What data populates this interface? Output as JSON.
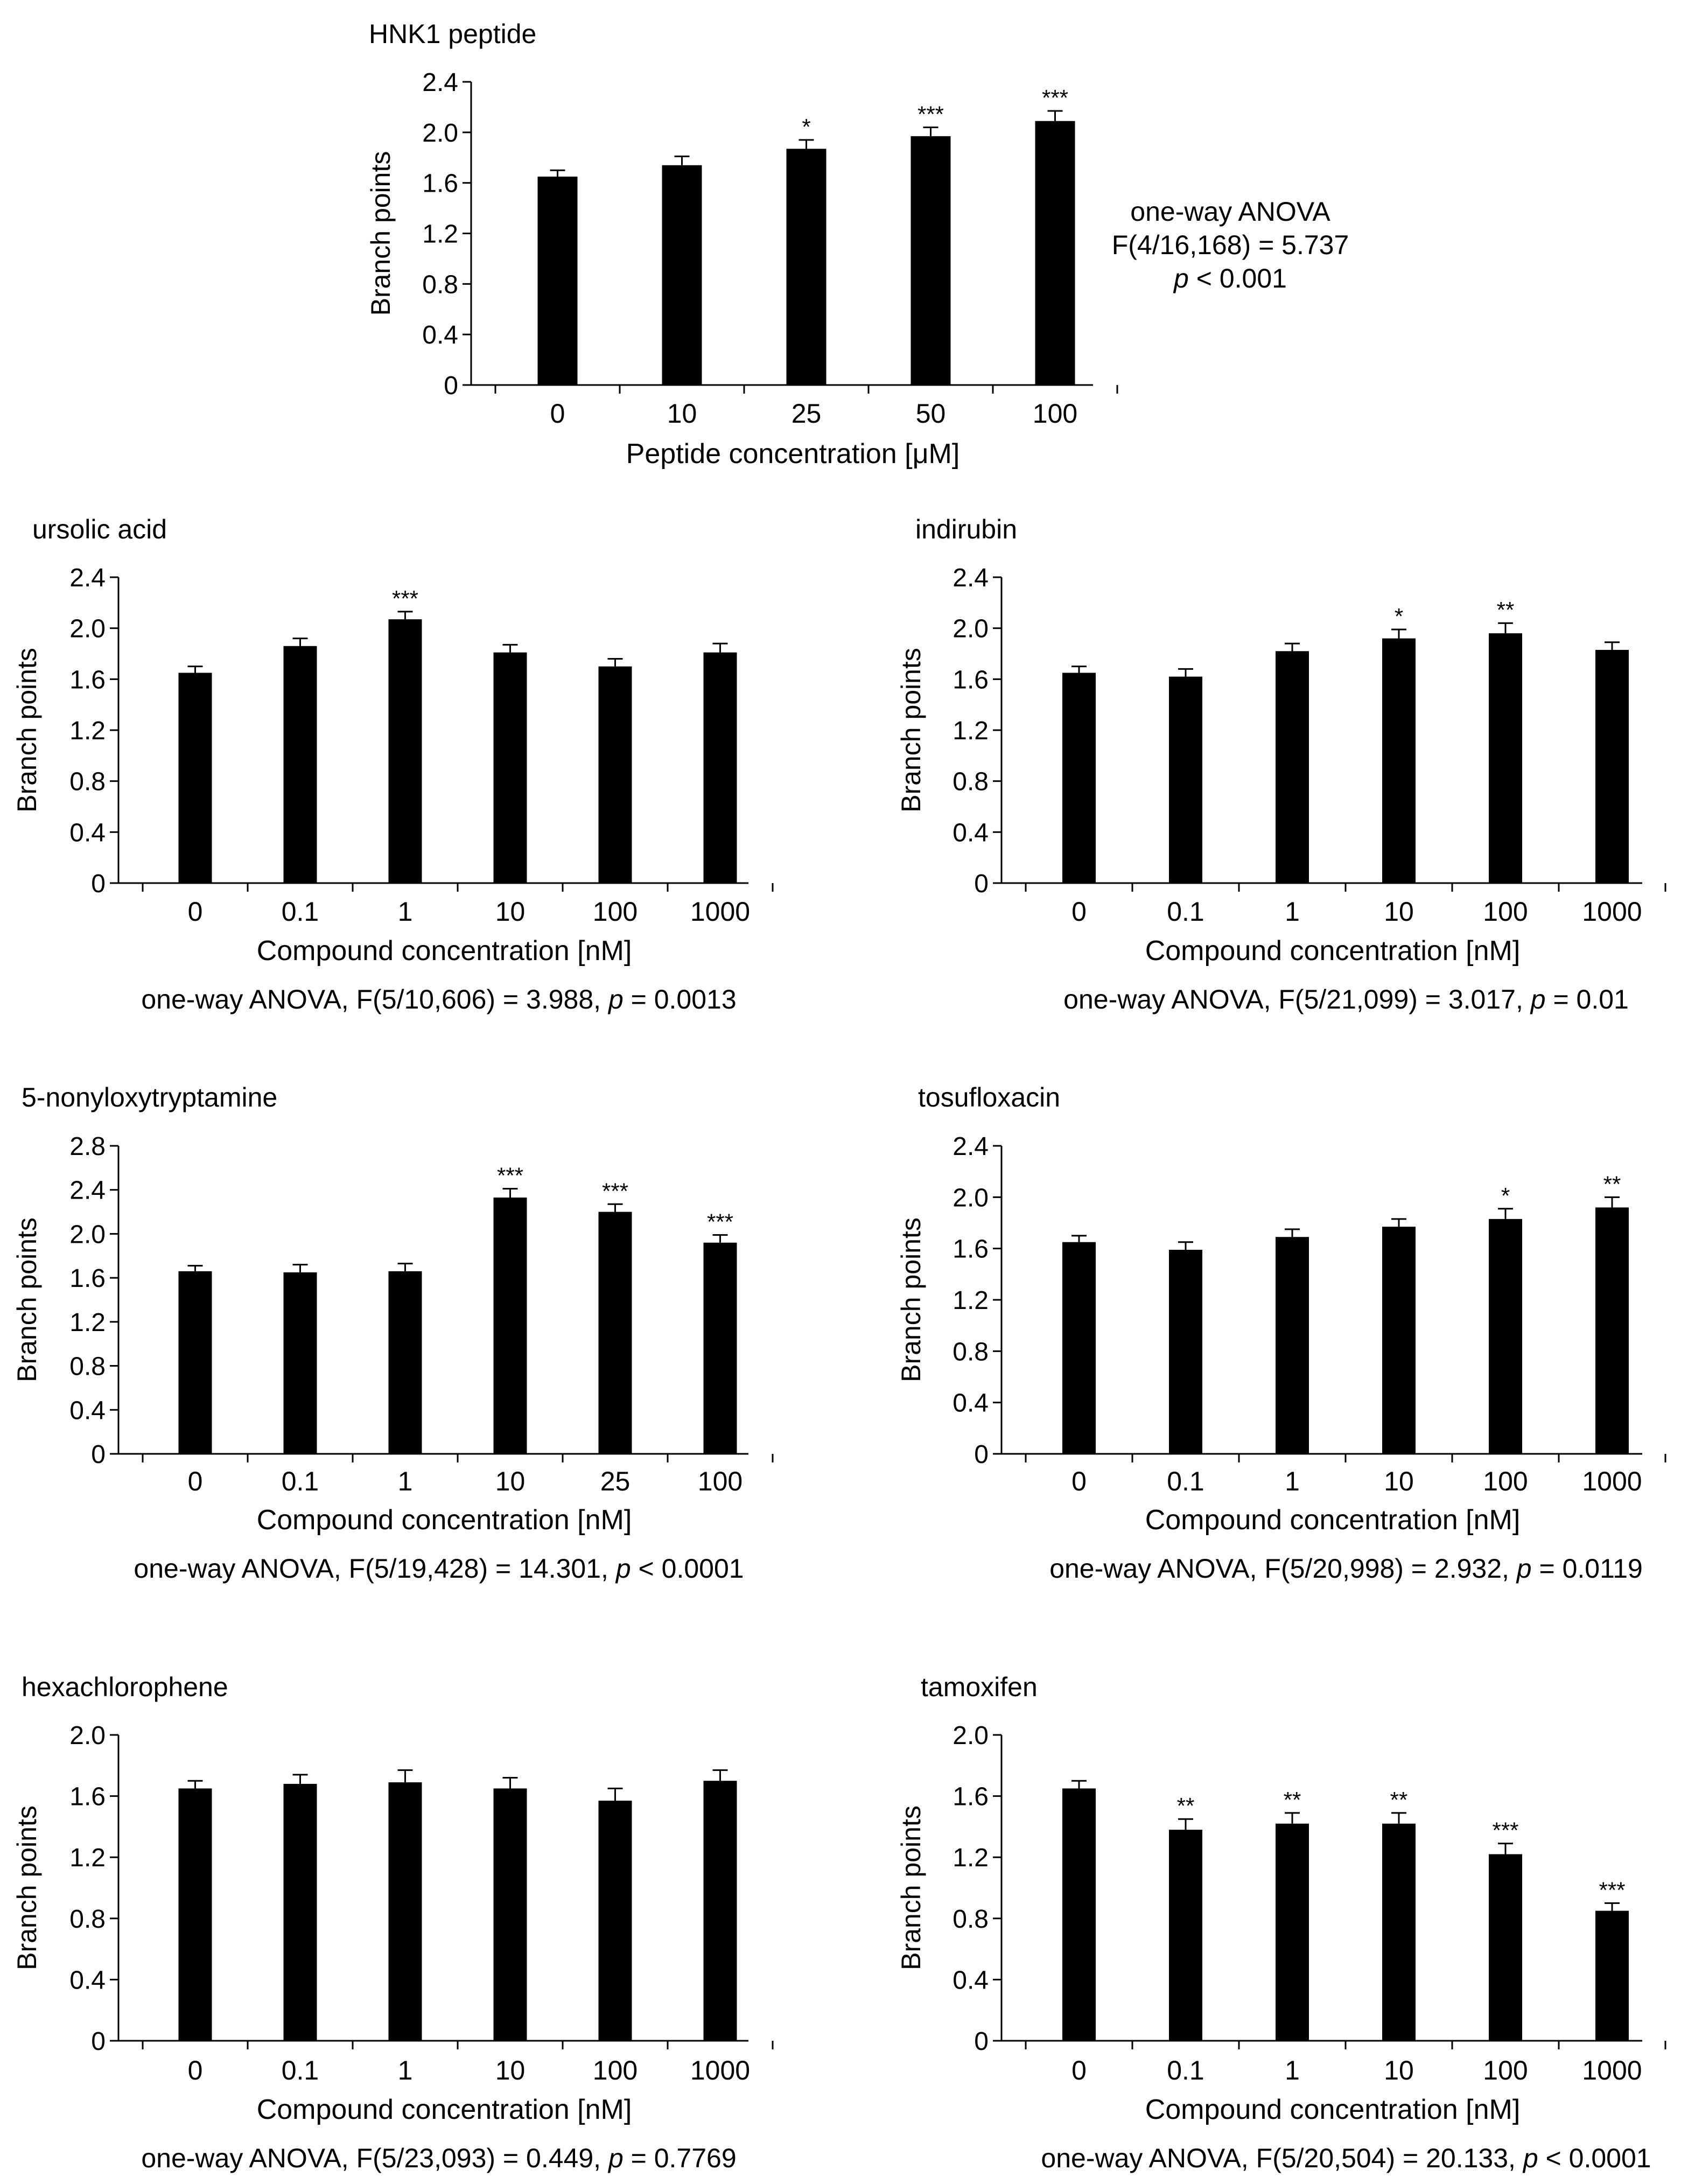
{
  "figure": {
    "bar_color": "#000000",
    "background": "#ffffff"
  },
  "chart_data": [
    {
      "id": "hnk1",
      "type": "bar",
      "title": "HNK1 peptide",
      "xlabel": "Peptide concentration [μM]",
      "ylabel": "Branch points",
      "ylim": [
        0,
        2.4
      ],
      "yticks": [
        "0",
        "0.4",
        "0.8",
        "1.2",
        "1.6",
        "2.0",
        "2.4"
      ],
      "categories": [
        "0",
        "10",
        "25",
        "50",
        "100"
      ],
      "values": [
        1.65,
        1.74,
        1.87,
        1.97,
        2.09
      ],
      "errors": [
        0.05,
        0.07,
        0.07,
        0.07,
        0.08
      ],
      "significance": [
        "",
        "",
        "*",
        "***",
        "***"
      ],
      "stats": {
        "prefix": "one-way ANOVA",
        "fstat": "F(4/16,168) = 5.737",
        "p_symbol": "p",
        "p_value": "< 0.001"
      }
    },
    {
      "id": "ursolic",
      "type": "bar",
      "title": "ursolic acid",
      "xlabel": "Compound concentration [nM]",
      "ylabel": "Branch points",
      "ylim": [
        0,
        2.4
      ],
      "yticks": [
        "0",
        "0.4",
        "0.8",
        "1.2",
        "1.6",
        "2.0",
        "2.4"
      ],
      "categories": [
        "0",
        "0.1",
        "1",
        "10",
        "100",
        "1000"
      ],
      "values": [
        1.65,
        1.86,
        2.07,
        1.81,
        1.7,
        1.81
      ],
      "errors": [
        0.05,
        0.06,
        0.06,
        0.06,
        0.06,
        0.07
      ],
      "significance": [
        "",
        "",
        "***",
        "",
        "",
        ""
      ],
      "stats": {
        "prefix": "one-way ANOVA, F(5/10,606) = 3.988, ",
        "p_symbol": "p",
        "p_value": "= 0.0013"
      }
    },
    {
      "id": "indirubin",
      "type": "bar",
      "title": "indirubin",
      "xlabel": "Compound concentration [nM]",
      "ylabel": "Branch points",
      "ylim": [
        0,
        2.4
      ],
      "yticks": [
        "0",
        "0.4",
        "0.8",
        "1.2",
        "1.6",
        "2.0",
        "2.4"
      ],
      "categories": [
        "0",
        "0.1",
        "1",
        "10",
        "100",
        "1000"
      ],
      "values": [
        1.65,
        1.62,
        1.82,
        1.92,
        1.96,
        1.83
      ],
      "errors": [
        0.05,
        0.06,
        0.06,
        0.07,
        0.08,
        0.06
      ],
      "significance": [
        "",
        "",
        "",
        "*",
        "**",
        ""
      ],
      "stats": {
        "prefix": "one-way ANOVA, F(5/21,099) = 3.017, ",
        "p_symbol": "p",
        "p_value": "= 0.01"
      }
    },
    {
      "id": "nonyloxy",
      "type": "bar",
      "title": "5-nonyloxytryptamine",
      "xlabel": "Compound concentration [nM]",
      "ylabel": "Branch points",
      "ylim": [
        0,
        2.8
      ],
      "yticks": [
        "0",
        "0.4",
        "0.8",
        "1.2",
        "1.6",
        "2.0",
        "2.4",
        "2.8"
      ],
      "categories": [
        "0",
        "0.1",
        "1",
        "10",
        "25",
        "100"
      ],
      "values": [
        1.66,
        1.65,
        1.66,
        2.33,
        2.2,
        1.92
      ],
      "errors": [
        0.05,
        0.07,
        0.07,
        0.08,
        0.07,
        0.07
      ],
      "significance": [
        "",
        "",
        "",
        "***",
        "***",
        "***"
      ],
      "stats": {
        "prefix": "one-way ANOVA, F(5/19,428) = 14.301, ",
        "p_symbol": "p",
        "p_value": "< 0.0001"
      }
    },
    {
      "id": "tosufloxacin",
      "type": "bar",
      "title": "tosufloxacin",
      "xlabel": "Compound concentration [nM]",
      "ylabel": "Branch points",
      "ylim": [
        0,
        2.4
      ],
      "yticks": [
        "0",
        "0.4",
        "0.8",
        "1.2",
        "1.6",
        "2.0",
        "2.4"
      ],
      "categories": [
        "0",
        "0.1",
        "1",
        "10",
        "100",
        "1000"
      ],
      "values": [
        1.65,
        1.59,
        1.69,
        1.77,
        1.83,
        1.92
      ],
      "errors": [
        0.05,
        0.06,
        0.06,
        0.06,
        0.08,
        0.08
      ],
      "significance": [
        "",
        "",
        "",
        "",
        "*",
        "**"
      ],
      "stats": {
        "prefix": "one-way ANOVA, F(5/20,998) = 2.932, ",
        "p_symbol": "p",
        "p_value": "= 0.0119"
      }
    },
    {
      "id": "hexachlorophene",
      "type": "bar",
      "title": "hexachlorophene",
      "xlabel": "Compound concentration [nM]",
      "ylabel": "Branch points",
      "ylim": [
        0,
        2.0
      ],
      "yticks": [
        "0",
        "0.4",
        "0.8",
        "1.2",
        "1.6",
        "2.0"
      ],
      "categories": [
        "0",
        "0.1",
        "1",
        "10",
        "100",
        "1000"
      ],
      "values": [
        1.65,
        1.68,
        1.69,
        1.65,
        1.57,
        1.7
      ],
      "errors": [
        0.05,
        0.06,
        0.08,
        0.07,
        0.08,
        0.07
      ],
      "significance": [
        "",
        "",
        "",
        "",
        "",
        ""
      ],
      "stats": {
        "prefix": "one-way ANOVA, F(5/23,093) = 0.449, ",
        "p_symbol": "p",
        "p_value": "= 0.7769"
      }
    },
    {
      "id": "tamoxifen",
      "type": "bar",
      "title": "tamoxifen",
      "xlabel": "Compound concentration [nM]",
      "ylabel": "Branch points",
      "ylim": [
        0,
        2.0
      ],
      "yticks": [
        "0",
        "0.4",
        "0.8",
        "1.2",
        "1.6",
        "2.0"
      ],
      "categories": [
        "0",
        "0.1",
        "1",
        "10",
        "100",
        "1000"
      ],
      "values": [
        1.65,
        1.38,
        1.42,
        1.42,
        1.22,
        0.85
      ],
      "errors": [
        0.05,
        0.07,
        0.07,
        0.07,
        0.07,
        0.05
      ],
      "significance": [
        "",
        "**",
        "**",
        "**",
        "***",
        "***"
      ],
      "stats": {
        "prefix": "one-way ANOVA, F(5/20,504) = 20.133, ",
        "p_symbol": "p",
        "p_value": "< 0.0001"
      }
    }
  ]
}
